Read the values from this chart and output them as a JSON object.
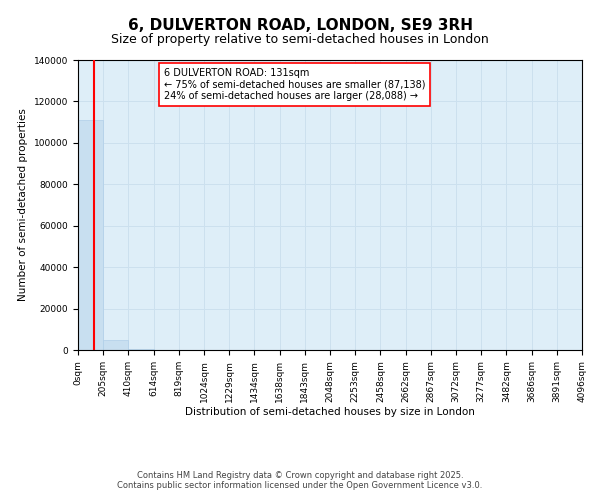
{
  "title": "6, DULVERTON ROAD, LONDON, SE9 3RH",
  "subtitle": "Size of property relative to semi-detached houses in London",
  "xlabel": "Distribution of semi-detached houses by size in London",
  "ylabel": "Number of semi-detached properties",
  "property_size": 131,
  "pct_smaller": 75,
  "n_smaller": "87,138",
  "pct_larger": 24,
  "n_larger": "28,088",
  "annotation_line1": "6 DULVERTON ROAD: 131sqm",
  "annotation_line2": "← 75% of semi-detached houses are smaller (87,138)",
  "annotation_line3": "24% of semi-detached houses are larger (28,088) →",
  "bar_color": "#c8dff0",
  "bar_edge_color": "#b0cfe8",
  "vline_color": "red",
  "annotation_box_edgecolor": "red",
  "annotation_box_facecolor": "white",
  "ylim": [
    0,
    140000
  ],
  "yticks": [
    0,
    20000,
    40000,
    60000,
    80000,
    100000,
    120000,
    140000
  ],
  "bin_edges": [
    0,
    205,
    410,
    614,
    819,
    1024,
    1229,
    1434,
    1638,
    1843,
    2048,
    2253,
    2458,
    2662,
    2867,
    3072,
    3277,
    3482,
    3686,
    3891,
    4096
  ],
  "bar_heights": [
    111000,
    5000,
    500,
    120,
    55,
    30,
    18,
    12,
    9,
    7,
    5,
    4,
    4,
    3,
    3,
    2,
    2,
    2,
    2,
    1
  ],
  "xtick_labels": [
    "0sqm",
    "205sqm",
    "410sqm",
    "614sqm",
    "819sqm",
    "1024sqm",
    "1229sqm",
    "1434sqm",
    "1638sqm",
    "1843sqm",
    "2048sqm",
    "2253sqm",
    "2458sqm",
    "2662sqm",
    "2867sqm",
    "3072sqm",
    "3277sqm",
    "3482sqm",
    "3686sqm",
    "3891sqm",
    "4096sqm"
  ],
  "copyright_text": "Contains HM Land Registry data © Crown copyright and database right 2025.\nContains public sector information licensed under the Open Government Licence v3.0.",
  "grid_color": "#cce0ee",
  "background_color": "#deeef8",
  "title_fontsize": 11,
  "subtitle_fontsize": 9,
  "axis_label_fontsize": 7.5,
  "tick_fontsize": 6.5,
  "annotation_fontsize": 7,
  "copyright_fontsize": 6
}
